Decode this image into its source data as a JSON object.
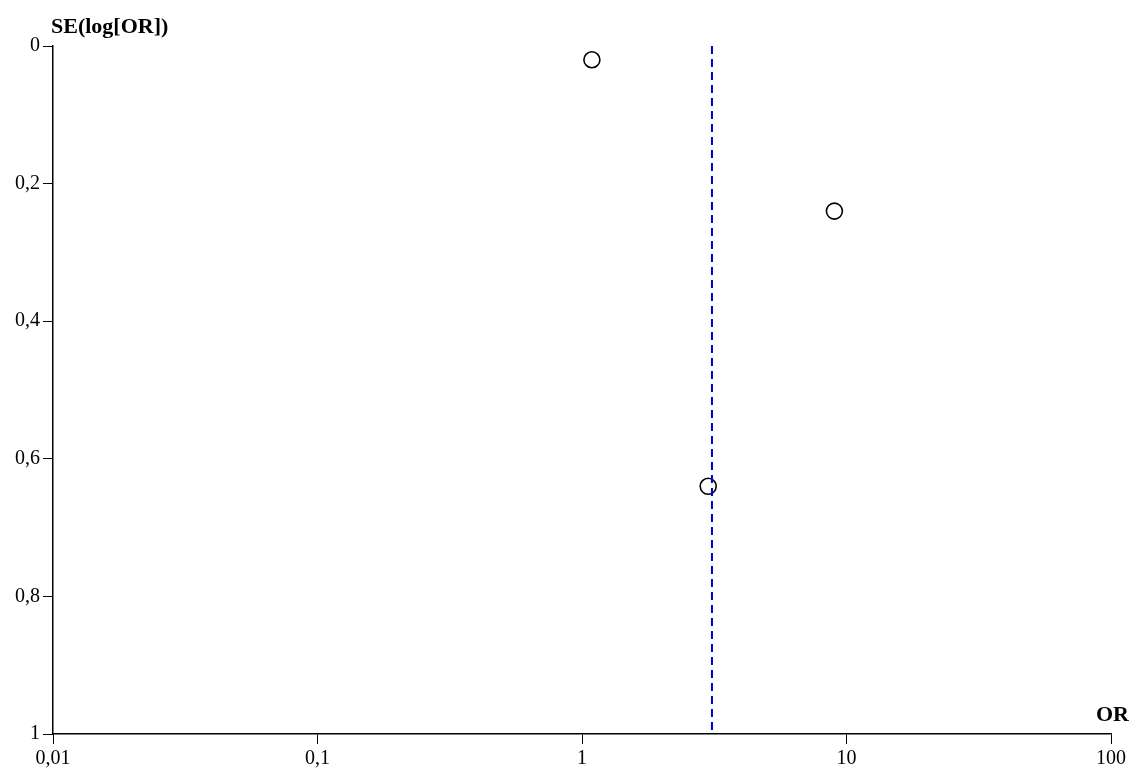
{
  "chart_data": {
    "type": "scatter",
    "xlabel": "OR",
    "ylabel": "SE(log[OR])",
    "log": "x",
    "grid": false,
    "marker": "circle",
    "xlim": [
      0.01,
      100
    ],
    "xticks": [
      {
        "value": 0.01,
        "label": "0,01"
      },
      {
        "value": 0.1,
        "label": "0,1"
      },
      1,
      10,
      100
    ],
    "ylim": [
      1,
      0
    ],
    "yticks": [
      0,
      {
        "value": 0.2,
        "label": "0,2"
      },
      {
        "value": 0.4,
        "label": "0,4"
      },
      {
        "value": 0.6,
        "label": "0,6"
      },
      {
        "value": 0.8,
        "label": "0,8"
      },
      1
    ],
    "series": [
      {
        "color": "#000000",
        "x": [
          1.09,
          9,
          3.0
        ],
        "values": [
          0.02,
          0.24,
          0.64
        ]
      }
    ],
    "ref_lines": [
      {
        "axis": "x",
        "value": 3.1,
        "color": "#0000cc",
        "line_style": "dashed"
      }
    ]
  }
}
